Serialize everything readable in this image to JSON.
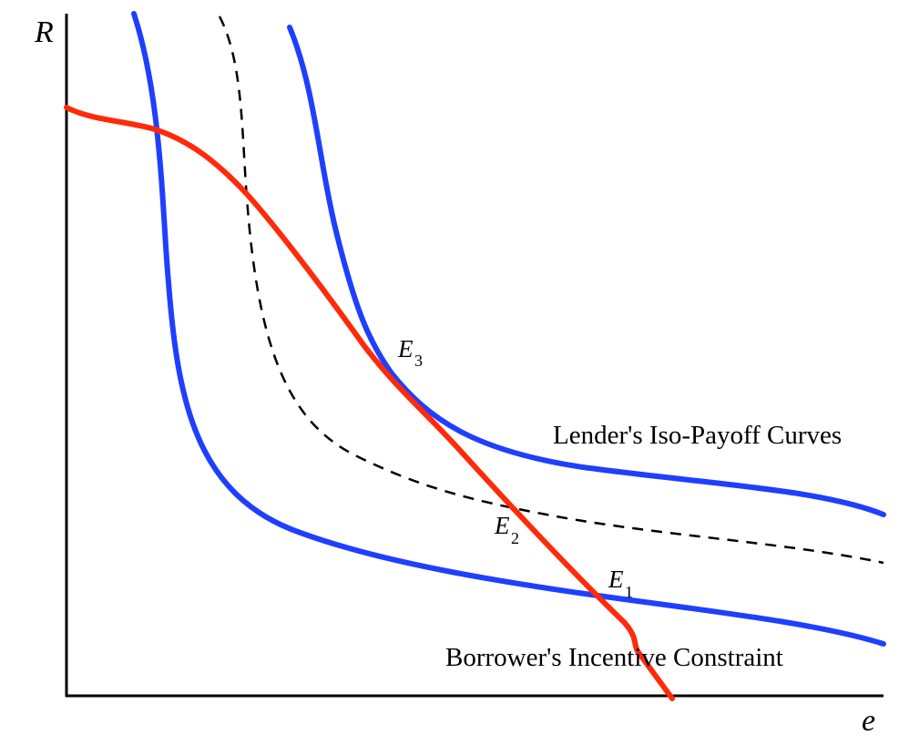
{
  "axes": {
    "y_label": "R",
    "x_label": "e"
  },
  "labels": {
    "lender_curves": "Lender's Iso-Payoff Curves",
    "borrower_constraint": "Borrower's Incentive Constraint"
  },
  "points": [
    {
      "letter": "E",
      "sub": "3"
    },
    {
      "letter": "E",
      "sub": "2"
    },
    {
      "letter": "E",
      "sub": "1"
    }
  ],
  "colors": {
    "iso_curve": "#1f3fff",
    "constraint": "#ff2a0a",
    "dashed": "#000000",
    "axis": "#000000"
  }
}
